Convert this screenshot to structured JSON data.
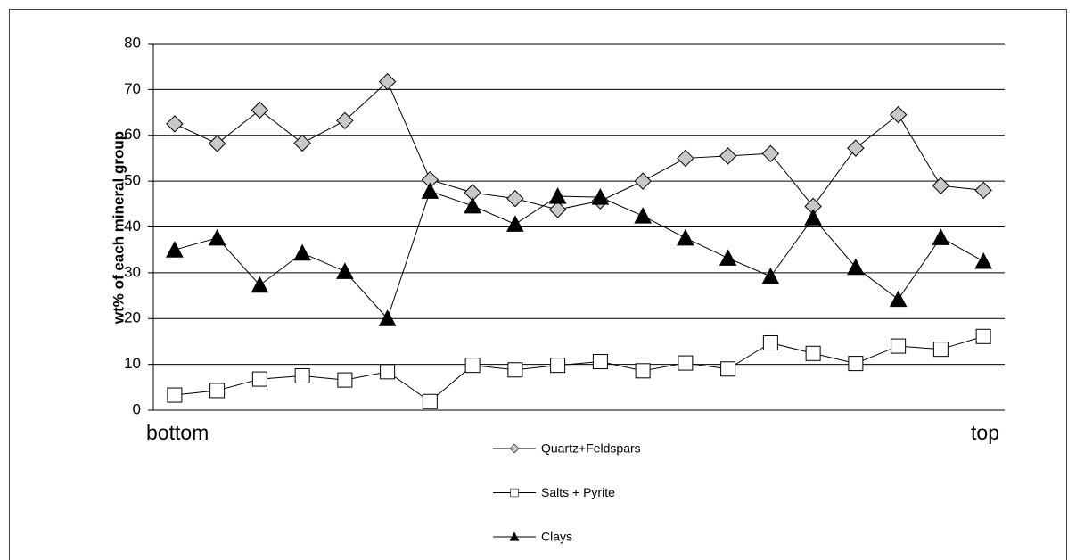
{
  "chart_data": {
    "type": "line",
    "y_label": "wt% of each mineral group",
    "categories": [
      "bottom",
      null,
      null,
      null,
      null,
      null,
      null,
      null,
      null,
      null,
      null,
      null,
      null,
      null,
      null,
      null,
      null,
      null,
      null,
      "top"
    ],
    "series": [
      {
        "name": "Quartz+Feldspars",
        "color": "#000000",
        "marker": "diamond",
        "marker_fill": "#c8c8c8",
        "values": [
          62.5,
          58.2,
          65.5,
          58.3,
          63.2,
          71.7,
          50.3,
          47.5,
          46.2,
          43.8,
          45.7,
          50,
          55,
          55.5,
          56,
          44.5,
          57.2,
          64.5,
          49,
          48
        ]
      },
      {
        "name": "Salts + Pyrite",
        "color": "#000000",
        "marker": "square",
        "marker_fill": "#ffffff",
        "values": [
          3.3,
          4.3,
          6.8,
          7.5,
          6.6,
          8.4,
          1.9,
          9.8,
          8.8,
          9.8,
          10.6,
          8.6,
          10.3,
          9,
          14.7,
          12.4,
          10.2,
          14,
          13.3,
          16.1
        ]
      },
      {
        "name": "Clays",
        "color": "#000000",
        "marker": "triangle",
        "marker_fill": "#000000",
        "values": [
          35,
          37.6,
          27.3,
          34.3,
          30.3,
          20,
          47.8,
          44.6,
          40.6,
          46.7,
          46.5,
          42.4,
          37.6,
          33.2,
          29.2,
          42,
          31.2,
          24.2,
          37.7,
          32.5
        ]
      }
    ],
    "ylim": [
      0,
      80
    ],
    "yticks": [
      0,
      10,
      20,
      30,
      40,
      50,
      60,
      70,
      80
    ],
    "grid": true,
    "legend": "bottom"
  }
}
